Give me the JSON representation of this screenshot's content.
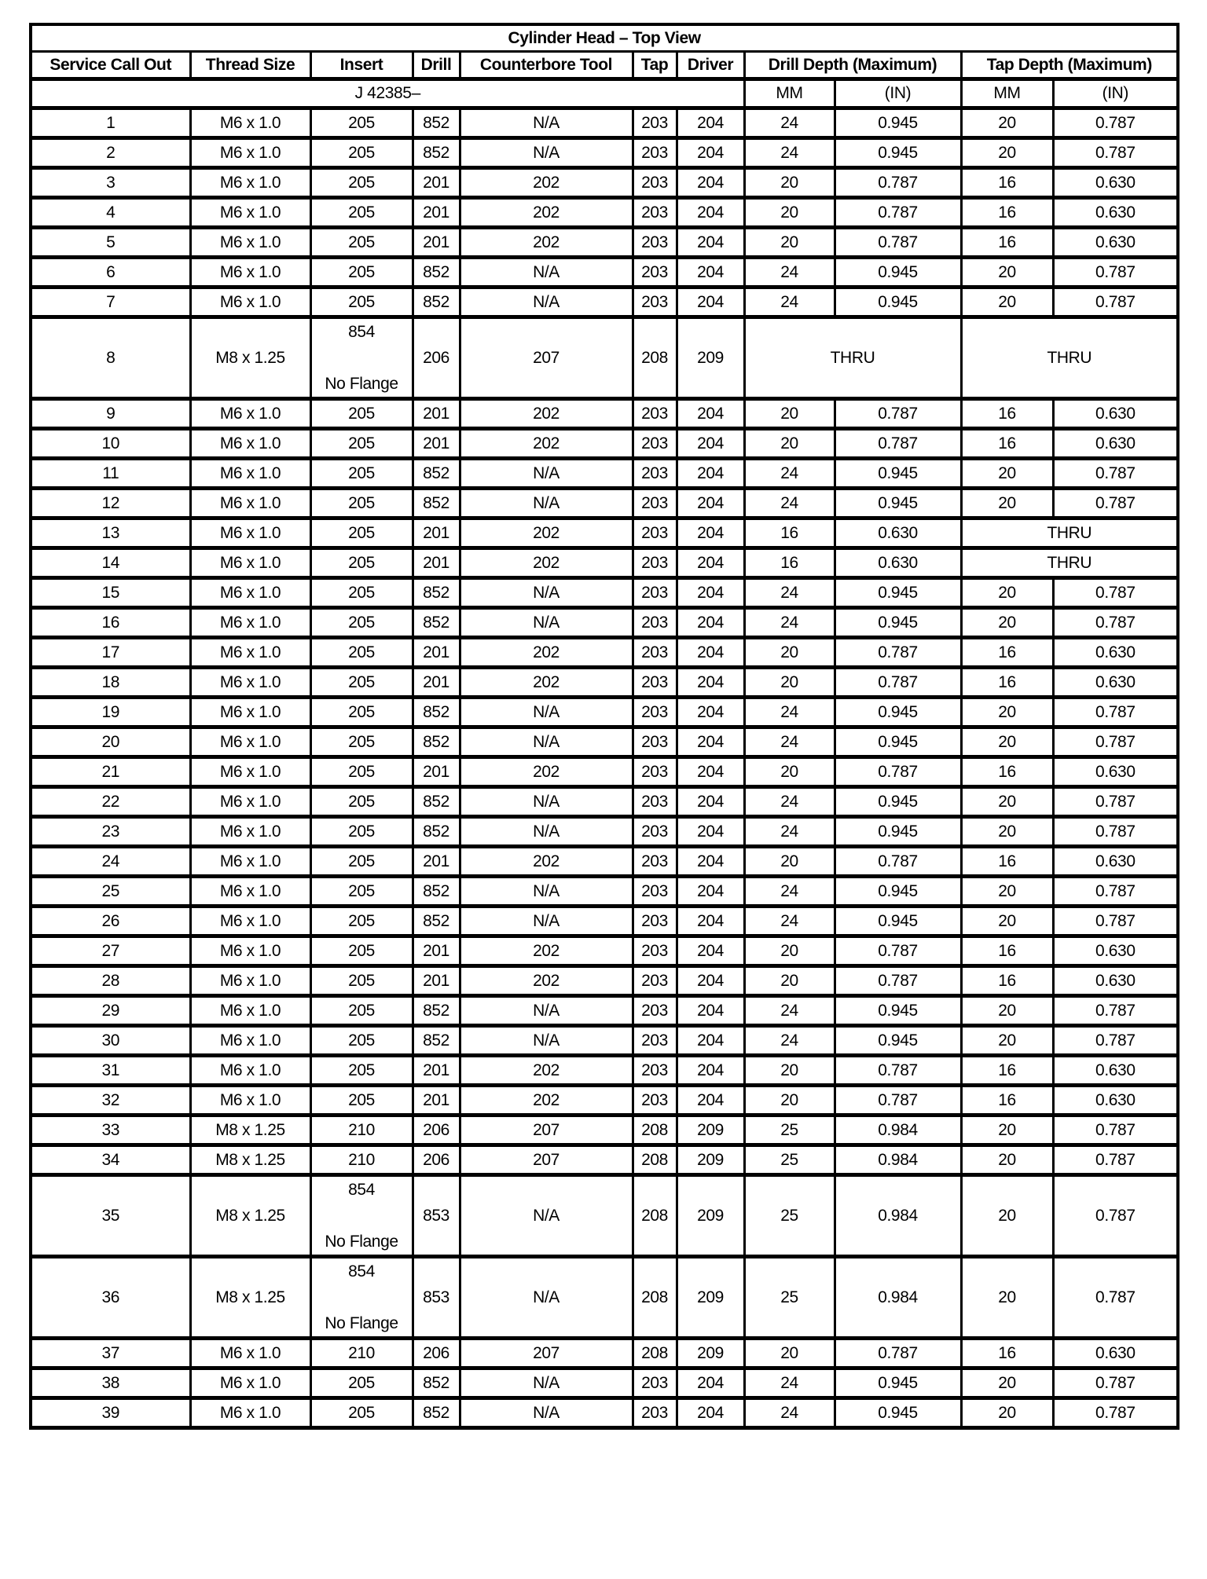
{
  "title": "Cylinder Head – Top View",
  "headers": [
    "Service Call Out",
    "Thread Size",
    "Insert",
    "Drill",
    "Counterbore Tool",
    "Tap",
    "Driver",
    "Drill Depth (Maximum)",
    "Tap Depth (Maximum)"
  ],
  "subheader": {
    "tool_prefix": "J 42385–",
    "drill_mm": "MM",
    "drill_in": "(IN)",
    "tap_mm": "MM",
    "tap_in": "(IN)"
  },
  "rows": [
    [
      "1",
      "M6 x 1.0",
      "205",
      null,
      "852",
      "N/A",
      "203",
      "204",
      "24",
      "0.945",
      "20",
      "0.787"
    ],
    [
      "2",
      "M6 x 1.0",
      "205",
      null,
      "852",
      "N/A",
      "203",
      "204",
      "24",
      "0.945",
      "20",
      "0.787"
    ],
    [
      "3",
      "M6 x 1.0",
      "205",
      null,
      "201",
      "202",
      "203",
      "204",
      "20",
      "0.787",
      "16",
      "0.630"
    ],
    [
      "4",
      "M6 x 1.0",
      "205",
      null,
      "201",
      "202",
      "203",
      "204",
      "20",
      "0.787",
      "16",
      "0.630"
    ],
    [
      "5",
      "M6 x 1.0",
      "205",
      null,
      "201",
      "202",
      "203",
      "204",
      "20",
      "0.787",
      "16",
      "0.630"
    ],
    [
      "6",
      "M6 x 1.0",
      "205",
      null,
      "852",
      "N/A",
      "203",
      "204",
      "24",
      "0.945",
      "20",
      "0.787"
    ],
    [
      "7",
      "M6 x 1.0",
      "205",
      null,
      "852",
      "N/A",
      "203",
      "204",
      "24",
      "0.945",
      "20",
      "0.787"
    ],
    [
      "8",
      "M8 x 1.25",
      "854",
      "No Flange",
      "206",
      "207",
      "208",
      "209",
      "THRU",
      null,
      "THRU",
      null
    ],
    [
      "9",
      "M6 x 1.0",
      "205",
      null,
      "201",
      "202",
      "203",
      "204",
      "20",
      "0.787",
      "16",
      "0.630"
    ],
    [
      "10",
      "M6 x 1.0",
      "205",
      null,
      "201",
      "202",
      "203",
      "204",
      "20",
      "0.787",
      "16",
      "0.630"
    ],
    [
      "11",
      "M6 x 1.0",
      "205",
      null,
      "852",
      "N/A",
      "203",
      "204",
      "24",
      "0.945",
      "20",
      "0.787"
    ],
    [
      "12",
      "M6 x 1.0",
      "205",
      null,
      "852",
      "N/A",
      "203",
      "204",
      "24",
      "0.945",
      "20",
      "0.787"
    ],
    [
      "13",
      "M6 x 1.0",
      "205",
      null,
      "201",
      "202",
      "203",
      "204",
      "16",
      "0.630",
      "THRU",
      null
    ],
    [
      "14",
      "M6 x 1.0",
      "205",
      null,
      "201",
      "202",
      "203",
      "204",
      "16",
      "0.630",
      "THRU",
      null
    ],
    [
      "15",
      "M6 x 1.0",
      "205",
      null,
      "852",
      "N/A",
      "203",
      "204",
      "24",
      "0.945",
      "20",
      "0.787"
    ],
    [
      "16",
      "M6 x 1.0",
      "205",
      null,
      "852",
      "N/A",
      "203",
      "204",
      "24",
      "0.945",
      "20",
      "0.787"
    ],
    [
      "17",
      "M6 x 1.0",
      "205",
      null,
      "201",
      "202",
      "203",
      "204",
      "20",
      "0.787",
      "16",
      "0.630"
    ],
    [
      "18",
      "M6 x 1.0",
      "205",
      null,
      "201",
      "202",
      "203",
      "204",
      "20",
      "0.787",
      "16",
      "0.630"
    ],
    [
      "19",
      "M6 x 1.0",
      "205",
      null,
      "852",
      "N/A",
      "203",
      "204",
      "24",
      "0.945",
      "20",
      "0.787"
    ],
    [
      "20",
      "M6 x 1.0",
      "205",
      null,
      "852",
      "N/A",
      "203",
      "204",
      "24",
      "0.945",
      "20",
      "0.787"
    ],
    [
      "21",
      "M6 x 1.0",
      "205",
      null,
      "201",
      "202",
      "203",
      "204",
      "20",
      "0.787",
      "16",
      "0.630"
    ],
    [
      "22",
      "M6 x 1.0",
      "205",
      null,
      "852",
      "N/A",
      "203",
      "204",
      "24",
      "0.945",
      "20",
      "0.787"
    ],
    [
      "23",
      "M6 x 1.0",
      "205",
      null,
      "852",
      "N/A",
      "203",
      "204",
      "24",
      "0.945",
      "20",
      "0.787"
    ],
    [
      "24",
      "M6 x 1.0",
      "205",
      null,
      "201",
      "202",
      "203",
      "204",
      "20",
      "0.787",
      "16",
      "0.630"
    ],
    [
      "25",
      "M6 x 1.0",
      "205",
      null,
      "852",
      "N/A",
      "203",
      "204",
      "24",
      "0.945",
      "20",
      "0.787"
    ],
    [
      "26",
      "M6 x 1.0",
      "205",
      null,
      "852",
      "N/A",
      "203",
      "204",
      "24",
      "0.945",
      "20",
      "0.787"
    ],
    [
      "27",
      "M6 x 1.0",
      "205",
      null,
      "201",
      "202",
      "203",
      "204",
      "20",
      "0.787",
      "16",
      "0.630"
    ],
    [
      "28",
      "M6 x 1.0",
      "205",
      null,
      "201",
      "202",
      "203",
      "204",
      "20",
      "0.787",
      "16",
      "0.630"
    ],
    [
      "29",
      "M6 x 1.0",
      "205",
      null,
      "852",
      "N/A",
      "203",
      "204",
      "24",
      "0.945",
      "20",
      "0.787"
    ],
    [
      "30",
      "M6 x 1.0",
      "205",
      null,
      "852",
      "N/A",
      "203",
      "204",
      "24",
      "0.945",
      "20",
      "0.787"
    ],
    [
      "31",
      "M6 x 1.0",
      "205",
      null,
      "201",
      "202",
      "203",
      "204",
      "20",
      "0.787",
      "16",
      "0.630"
    ],
    [
      "32",
      "M6 x 1.0",
      "205",
      null,
      "201",
      "202",
      "203",
      "204",
      "20",
      "0.787",
      "16",
      "0.630"
    ],
    [
      "33",
      "M8 x 1.25",
      "210",
      null,
      "206",
      "207",
      "208",
      "209",
      "25",
      "0.984",
      "20",
      "0.787"
    ],
    [
      "34",
      "M8 x 1.25",
      "210",
      null,
      "206",
      "207",
      "208",
      "209",
      "25",
      "0.984",
      "20",
      "0.787"
    ],
    [
      "35",
      "M8 x 1.25",
      "854",
      "No Flange",
      "853",
      "N/A",
      "208",
      "209",
      "25",
      "0.984",
      "20",
      "0.787"
    ],
    [
      "36",
      "M8 x 1.25",
      "854",
      "No Flange",
      "853",
      "N/A",
      "208",
      "209",
      "25",
      "0.984",
      "20",
      "0.787"
    ],
    [
      "37",
      "M6 x 1.0",
      "210",
      null,
      "206",
      "207",
      "208",
      "209",
      "20",
      "0.787",
      "16",
      "0.630"
    ],
    [
      "38",
      "M6 x 1.0",
      "205",
      null,
      "852",
      "N/A",
      "203",
      "204",
      "24",
      "0.945",
      "20",
      "0.787"
    ],
    [
      "39",
      "M6 x 1.0",
      "205",
      null,
      "852",
      "N/A",
      "203",
      "204",
      "24",
      "0.945",
      "20",
      "0.787"
    ]
  ]
}
